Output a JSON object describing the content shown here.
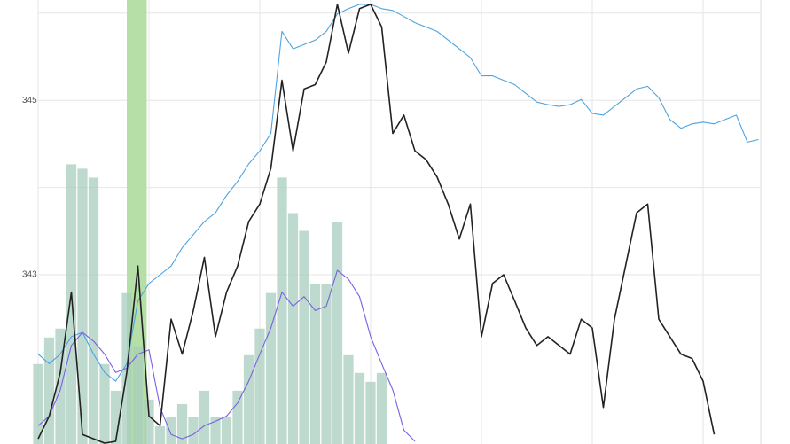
{
  "chart_data": {
    "type": "line",
    "x": [
      0,
      5,
      10,
      15,
      20,
      25,
      30,
      35,
      40,
      45,
      50,
      55,
      60,
      65,
      70,
      75,
      80,
      85,
      90,
      95,
      100,
      105,
      110,
      115,
      120,
      125,
      130,
      135,
      140,
      145,
      150,
      155,
      160,
      165,
      170,
      175,
      180,
      185,
      190,
      195,
      200,
      205,
      210,
      215,
      220,
      225,
      230,
      235,
      240,
      245,
      250,
      255,
      260,
      265,
      270,
      275,
      280,
      285,
      290,
      295,
      300,
      305,
      310,
      315,
      320,
      325
    ],
    "xlim": [
      0,
      326
    ],
    "minor_xticks": [
      0,
      50,
      100,
      150,
      200,
      250,
      300
    ],
    "ylim": [
      341.06,
      346.15
    ],
    "yticks": [
      343,
      345
    ],
    "minor_yticks": [
      342,
      344,
      346
    ],
    "y2lim": [
      0,
      100
    ],
    "grid": true,
    "highlight": [
      40,
      49
    ],
    "highlight_color": "#b5dfa6",
    "series": [
      {
        "type": "bar",
        "axis": "y2",
        "color": "#a8cdbd",
        "values": [
          18,
          24,
          26,
          63,
          62,
          60,
          18,
          12,
          34,
          22,
          10,
          4,
          6,
          9,
          6,
          12,
          6,
          6,
          12,
          20,
          26,
          34,
          60,
          52,
          48,
          36,
          36,
          50,
          20,
          16,
          14,
          16,
          null,
          null,
          null,
          null,
          null,
          null,
          null,
          null,
          null,
          null,
          null,
          null,
          null,
          null,
          null,
          null,
          null,
          null,
          null,
          null,
          null,
          null,
          null,
          null,
          null,
          null,
          null,
          null,
          null,
          null,
          null,
          null,
          null,
          null
        ]
      },
      {
        "type": "line",
        "color": "#4da3e0",
        "values": [
          342.09,
          341.98,
          342.09,
          342.29,
          342.34,
          342.09,
          341.88,
          341.78,
          341.98,
          342.7,
          342.9,
          343.0,
          343.1,
          343.31,
          343.46,
          343.61,
          343.71,
          343.91,
          344.07,
          344.27,
          344.42,
          344.62,
          345.79,
          345.59,
          345.64,
          345.69,
          345.79,
          345.99,
          346.05,
          346.1,
          346.1,
          346.05,
          346.03,
          345.96,
          345.89,
          345.84,
          345.79,
          345.69,
          345.59,
          345.49,
          345.28,
          345.28,
          345.23,
          345.18,
          345.08,
          344.98,
          344.95,
          344.93,
          344.95,
          345.01,
          344.85,
          344.83,
          344.93,
          345.03,
          345.13,
          345.16,
          345.03,
          344.78,
          344.68,
          344.73,
          344.75,
          344.73,
          344.78,
          344.83,
          344.52,
          344.55
        ]
      },
      {
        "type": "line",
        "color": "#7a5fe0",
        "values": [
          341.27,
          341.38,
          341.68,
          342.19,
          342.34,
          342.24,
          342.09,
          341.88,
          341.93,
          342.09,
          342.14,
          341.48,
          341.17,
          341.12,
          341.17,
          341.27,
          341.32,
          341.38,
          341.53,
          341.78,
          342.09,
          342.39,
          342.8,
          342.64,
          342.75,
          342.59,
          342.64,
          343.05,
          342.95,
          342.75,
          342.29,
          341.98,
          341.68,
          341.22,
          341.09,
          null,
          null,
          null,
          null,
          null,
          null,
          null,
          null,
          null,
          null,
          null,
          null,
          null,
          null,
          null,
          null,
          null,
          null,
          null,
          null,
          null,
          null,
          null,
          null,
          null,
          null,
          null,
          null,
          null,
          null,
          null
        ]
      },
      {
        "type": "line",
        "color": "#222222",
        "values": [
          341.12,
          341.38,
          341.88,
          342.8,
          341.17,
          341.12,
          341.07,
          341.09,
          341.88,
          343.1,
          341.38,
          341.27,
          342.49,
          342.09,
          342.59,
          343.2,
          342.29,
          342.8,
          343.1,
          343.61,
          343.81,
          344.22,
          345.23,
          344.42,
          345.13,
          345.18,
          345.44,
          346.1,
          345.54,
          346.05,
          346.1,
          345.84,
          344.62,
          344.83,
          344.42,
          344.32,
          344.12,
          343.81,
          343.41,
          343.81,
          342.29,
          342.9,
          343.0,
          342.7,
          342.39,
          342.19,
          342.29,
          342.19,
          342.09,
          342.49,
          342.39,
          341.48,
          342.49,
          343.1,
          343.71,
          343.81,
          342.49,
          342.29,
          342.09,
          342.04,
          341.78,
          341.17,
          null,
          null,
          null,
          null
        ]
      }
    ]
  }
}
